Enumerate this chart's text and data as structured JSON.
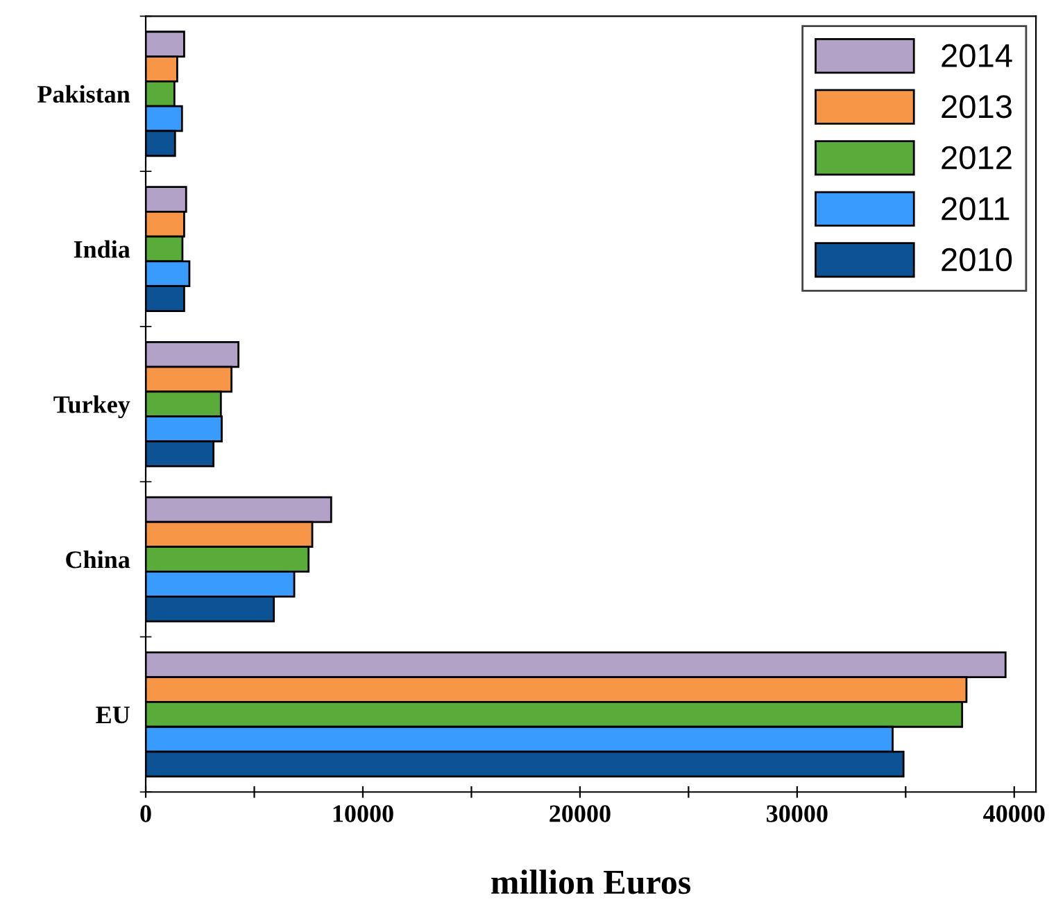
{
  "chart_data": {
    "type": "bar",
    "orientation": "horizontal",
    "xlabel": "million Euros",
    "categories": [
      "Pakistan",
      "India",
      "Turkey",
      "China",
      "EU"
    ],
    "series": [
      {
        "name": "2014",
        "color": "#b3a2c7",
        "values": [
          1770,
          1860,
          4270,
          8540,
          39600
        ]
      },
      {
        "name": "2013",
        "color": "#f79646",
        "values": [
          1450,
          1770,
          3950,
          7670,
          37800
        ]
      },
      {
        "name": "2012",
        "color": "#5aac3a",
        "values": [
          1320,
          1690,
          3460,
          7500,
          37600
        ]
      },
      {
        "name": "2011",
        "color": "#3a9bff",
        "values": [
          1670,
          2010,
          3500,
          6840,
          34400
        ]
      },
      {
        "name": "2010",
        "color": "#0b5394",
        "values": [
          1350,
          1770,
          3120,
          5900,
          34900
        ]
      }
    ],
    "xlim": [
      0,
      41000
    ],
    "xticks": [
      0,
      {
        "value": 5000,
        "label": null
      },
      10000,
      {
        "value": 15000,
        "label": null
      },
      20000,
      {
        "value": 25000,
        "label": null
      },
      30000,
      {
        "value": 35000,
        "label": null
      },
      40000
    ],
    "legend": "top right",
    "grid": false
  }
}
